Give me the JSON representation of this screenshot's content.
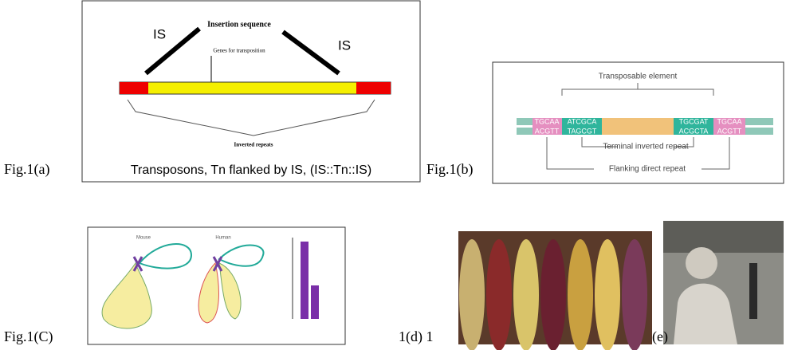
{
  "panels": {
    "a": {
      "label": "Fig.1(a)",
      "is_left": "IS",
      "is_right": "IS",
      "insertion": "Insertion sequence",
      "genes": "Genes for transposition",
      "repeats": "Inverted repeats",
      "caption": "Transposons, Tn flanked by IS, (IS::Tn::IS)"
    },
    "b": {
      "label": "Fig.1(b)",
      "element": "Transposable element",
      "top": [
        "TGCAA",
        "ATCGCA",
        "TGCGAT",
        "TGCAA"
      ],
      "bottom": [
        "ACGTT",
        "TAGCGT",
        "ACGCTA",
        "ACGTT"
      ],
      "terminal": "Terminal inverted repeat",
      "flanking": "Flanking direct repeat"
    },
    "c": {
      "label": "Fig.1(C)",
      "left": "Mouse",
      "right": "Human"
    },
    "d": {
      "label": "1(d) 1"
    },
    "e": {
      "label": "(e)"
    }
  }
}
